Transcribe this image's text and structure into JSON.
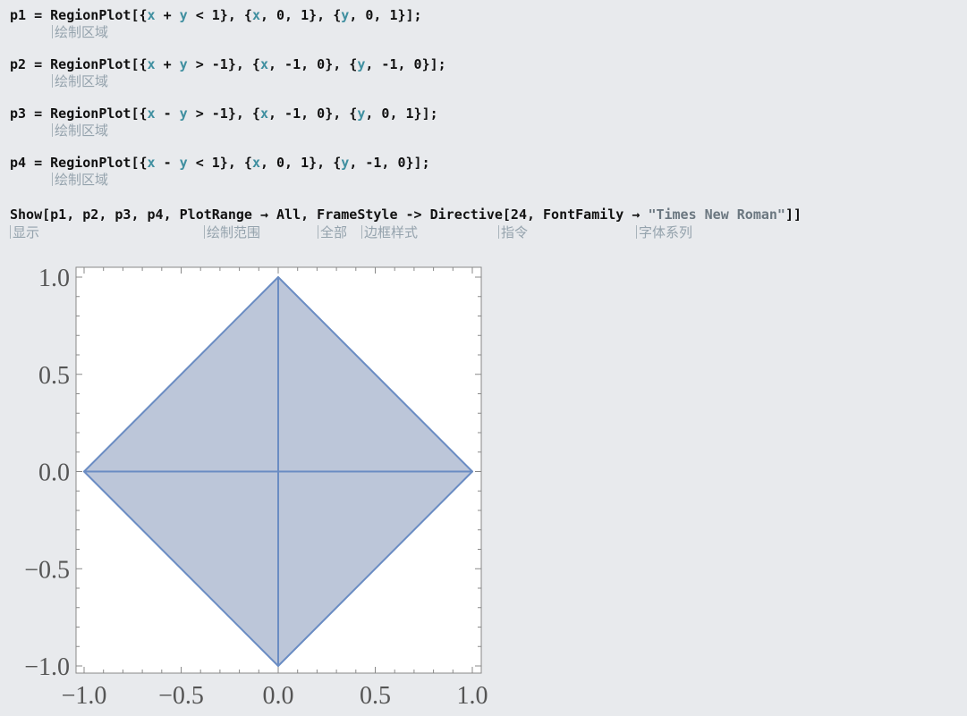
{
  "cells": [
    {
      "code": [
        "p1 = RegionPlot[{",
        "x",
        " + ",
        "y",
        " < 1}, {",
        "x",
        ", 0, 1}, {",
        "y",
        ", 0, 1}];"
      ],
      "hint": "绘制区域"
    },
    {
      "code": [
        "p2 = RegionPlot[{",
        "x",
        " + ",
        "y",
        " > -1}, {",
        "x",
        ", -1, 0}, {",
        "y",
        ", -1, 0}];"
      ],
      "hint": "绘制区域"
    },
    {
      "code": [
        "p3 = RegionPlot[{",
        "x",
        " - ",
        "y",
        " > -1}, {",
        "x",
        ", -1, 0}, {",
        "y",
        ", 0, 1}];"
      ],
      "hint": "绘制区域"
    },
    {
      "code": [
        "p4 = RegionPlot[{",
        "x",
        " - ",
        "y",
        " < 1}, {",
        "x",
        ", 0, 1}, {",
        "y",
        ", -1, 0}];"
      ],
      "hint": "绘制区域"
    }
  ],
  "show_cell": {
    "code_before_string": "Show[p1, p2, p3, p4, PlotRange → All, FrameStyle -> Directive[24, FontFamily → ",
    "string_literal": "\"Times New Roman\"",
    "code_after_string": "]]",
    "hints": [
      "显示",
      "绘制范围",
      "全部",
      "边框样式",
      "指令",
      "字体系列"
    ]
  },
  "colors": {
    "background": "#e8eaed",
    "fill": "#bcc6d9",
    "edge": "#6a8cc3",
    "code": "#111111",
    "variable": "#3f8fa0",
    "hint": "#95a3ad"
  },
  "chart_data": {
    "type": "area",
    "title": "",
    "xlabel": "",
    "ylabel": "",
    "xlim": [
      -1.0,
      1.0
    ],
    "ylim": [
      -1.0,
      1.0
    ],
    "xticks": [
      "−1.0",
      "−0.5",
      "0.0",
      "0.5",
      "1.0"
    ],
    "yticks": [
      "1.0",
      "0.5",
      "0.0",
      "−0.5",
      "−1.0"
    ],
    "grid": false,
    "regions": [
      {
        "name": "p1",
        "polygon": [
          [
            0,
            0
          ],
          [
            1,
            0
          ],
          [
            0,
            1
          ]
        ]
      },
      {
        "name": "p2",
        "polygon": [
          [
            0,
            0
          ],
          [
            -1,
            0
          ],
          [
            0,
            -1
          ]
        ]
      },
      {
        "name": "p3",
        "polygon": [
          [
            0,
            0
          ],
          [
            -1,
            0
          ],
          [
            0,
            1
          ]
        ]
      },
      {
        "name": "p4",
        "polygon": [
          [
            0,
            0
          ],
          [
            1,
            0
          ],
          [
            0,
            -1
          ]
        ]
      }
    ]
  }
}
